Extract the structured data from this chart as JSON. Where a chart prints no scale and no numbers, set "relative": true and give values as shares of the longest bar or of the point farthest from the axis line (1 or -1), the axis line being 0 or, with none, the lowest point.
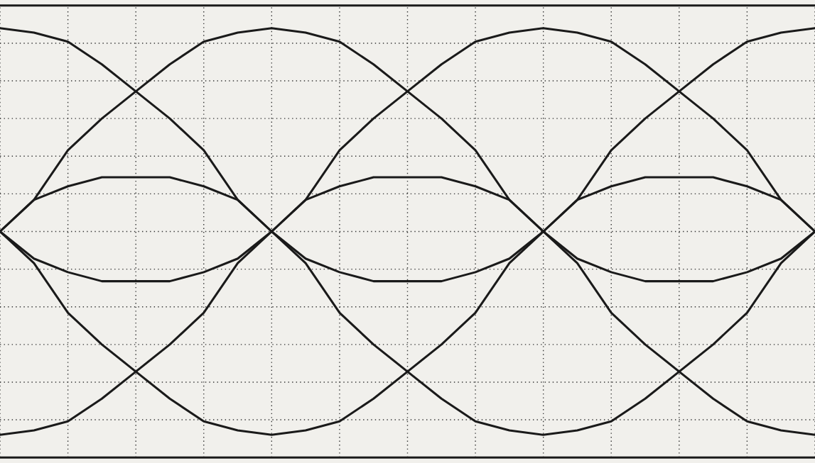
{
  "chart_data": {
    "type": "line",
    "relative": true,
    "grid": true,
    "marker": "none",
    "line_style": "solid",
    "categories": [
      null,
      null,
      null,
      null,
      null,
      null,
      null,
      null,
      null,
      null,
      null,
      null,
      null,
      null,
      null,
      null,
      null,
      null,
      null,
      null,
      null,
      null,
      null,
      null,
      null
    ],
    "series": [
      {
        "color": "#1a1a1a",
        "values": [
          1.0,
          1.0,
          1.0,
          1.0,
          1.0,
          1.0,
          1.0,
          1.0,
          1.0,
          1.0,
          1.0,
          1.0,
          1.0,
          1.0,
          1.0,
          1.0,
          1.0,
          1.0,
          1.0,
          1.0,
          1.0,
          1.0,
          1.0,
          1.0,
          1.0
        ]
      },
      {
        "color": "#1a1a1a",
        "values": [
          0.0,
          0.0,
          0.0,
          0.0,
          0.0,
          0.0,
          0.0,
          0.0,
          0.0,
          0.0,
          0.0,
          0.0,
          0.0,
          0.0,
          0.0,
          0.0,
          0.0,
          0.0,
          0.0,
          0.0,
          0.0,
          0.0,
          0.0,
          0.0,
          0.0
        ]
      },
      {
        "color": "#1a1a1a",
        "values": [
          0.5,
          0.57,
          0.6,
          0.62,
          0.62,
          0.62,
          0.6,
          0.57,
          0.5,
          0.57,
          0.68,
          0.75,
          0.81,
          0.87,
          0.92,
          0.94,
          0.95,
          0.94,
          0.92,
          0.87,
          0.81,
          0.75,
          0.68,
          0.57,
          0.5
        ]
      },
      {
        "color": "#1a1a1a",
        "values": [
          0.5,
          0.44,
          0.41,
          0.39,
          0.39,
          0.39,
          0.41,
          0.44,
          0.5,
          0.43,
          0.32,
          0.25,
          0.19,
          0.13,
          0.08,
          0.06,
          0.05,
          0.06,
          0.08,
          0.13,
          0.19,
          0.25,
          0.32,
          0.43,
          0.5
        ]
      },
      {
        "color": "#1a1a1a",
        "values": [
          0.5,
          0.57,
          0.68,
          0.75,
          0.81,
          0.87,
          0.92,
          0.94,
          0.95,
          0.94,
          0.92,
          0.87,
          0.81,
          0.75,
          0.68,
          0.57,
          0.5,
          0.57,
          0.6,
          0.62,
          0.62,
          0.62,
          0.6,
          0.57,
          0.5
        ]
      },
      {
        "color": "#1a1a1a",
        "values": [
          0.5,
          0.43,
          0.32,
          0.25,
          0.19,
          0.13,
          0.08,
          0.06,
          0.05,
          0.06,
          0.08,
          0.13,
          0.19,
          0.25,
          0.32,
          0.43,
          0.5,
          0.44,
          0.41,
          0.39,
          0.39,
          0.39,
          0.41,
          0.44,
          0.5
        ]
      },
      {
        "color": "#1a1a1a",
        "values": [
          0.95,
          0.94,
          0.92,
          0.87,
          0.81,
          0.75,
          0.68,
          0.57,
          0.5,
          0.57,
          0.6,
          0.62,
          0.62,
          0.62,
          0.6,
          0.57,
          0.5,
          0.57,
          0.68,
          0.75,
          0.81,
          0.87,
          0.92,
          0.94,
          0.95
        ]
      },
      {
        "color": "#1a1a1a",
        "values": [
          0.05,
          0.06,
          0.08,
          0.13,
          0.19,
          0.25,
          0.32,
          0.43,
          0.5,
          0.44,
          0.41,
          0.39,
          0.39,
          0.39,
          0.41,
          0.44,
          0.5,
          0.43,
          0.32,
          0.25,
          0.19,
          0.13,
          0.08,
          0.06,
          0.05
        ]
      }
    ]
  }
}
